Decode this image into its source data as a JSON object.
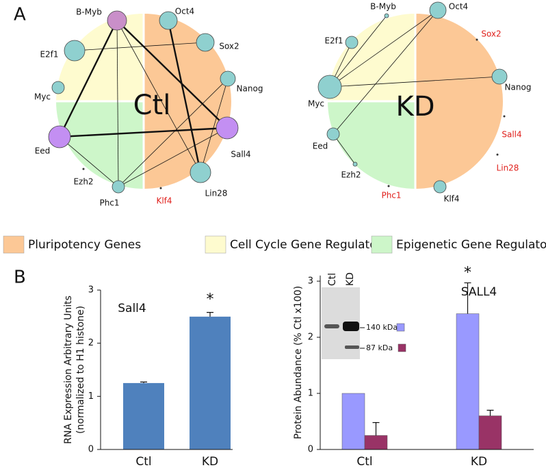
{
  "panel_a": {
    "label": "A",
    "networks": [
      {
        "title": "Ctl",
        "nodes": [
          {
            "name": "B-Myb",
            "color": "#c98fc9"
          },
          {
            "name": "Oct4",
            "color": "#8fd0cf"
          },
          {
            "name": "E2f1",
            "color": "#8fd0cf"
          },
          {
            "name": "Sox2",
            "color": "#8fd0cf"
          },
          {
            "name": "Myc",
            "color": "#8fd0cf"
          },
          {
            "name": "Nanog",
            "color": "#8fd0cf"
          },
          {
            "name": "Eed",
            "color": "#c38ff2"
          },
          {
            "name": "Sall4",
            "color": "#c38ff2"
          },
          {
            "name": "Ezh2",
            "color": "#333333"
          },
          {
            "name": "Lin28",
            "color": "#8fd0cf"
          },
          {
            "name": "Phc1",
            "color": "#8fd0cf"
          },
          {
            "name": "Klf4",
            "color": "#333333",
            "label_color": "#e0201c"
          }
        ],
        "strong_edges": [
          [
            "B-Myb",
            "Eed"
          ],
          [
            "B-Myb",
            "Sall4"
          ],
          [
            "Eed",
            "Sall4"
          ],
          [
            "Oct4",
            "Lin28"
          ]
        ],
        "edges": [
          [
            "B-Myb",
            "Phc1"
          ],
          [
            "B-Myb",
            "Lin28"
          ],
          [
            "E2f1",
            "Sox2"
          ],
          [
            "Nanog",
            "Lin28"
          ],
          [
            "Nanog",
            "Phc1"
          ],
          [
            "Sall4",
            "Phc1"
          ],
          [
            "Eed",
            "Phc1"
          ]
        ]
      },
      {
        "title": "KD",
        "nodes": [
          {
            "name": "B-Myb",
            "color": "#8fd0cf"
          },
          {
            "name": "Oct4",
            "color": "#8fd0cf"
          },
          {
            "name": "E2f1",
            "color": "#8fd0cf"
          },
          {
            "name": "Sox2",
            "color": "#333333",
            "label_color": "#e0201c"
          },
          {
            "name": "Myc",
            "color": "#8fd0cf"
          },
          {
            "name": "Nanog",
            "color": "#8fd0cf"
          },
          {
            "name": "Eed",
            "color": "#8fd0cf"
          },
          {
            "name": "Sall4",
            "color": "#333333",
            "label_color": "#e0201c"
          },
          {
            "name": "Ezh2",
            "color": "#8fd0cf"
          },
          {
            "name": "Lin28",
            "color": "#333333",
            "label_color": "#e0201c"
          },
          {
            "name": "Phc1",
            "color": "#333333",
            "label_color": "#e0201c"
          },
          {
            "name": "Klf4",
            "color": "#8fd0cf"
          }
        ],
        "strong_edges": [],
        "edges": [
          [
            "Myc",
            "B-Myb"
          ],
          [
            "Myc",
            "E2f1"
          ],
          [
            "Myc",
            "Oct4"
          ],
          [
            "Myc",
            "Nanog"
          ],
          [
            "Eed",
            "Oct4"
          ],
          [
            "Eed",
            "Ezh2"
          ]
        ]
      }
    ]
  },
  "legend": [
    {
      "label": "Pluripotency Genes",
      "color": "#fcc896"
    },
    {
      "label": "Cell Cycle Gene Regulators",
      "color": "#fefbcf"
    },
    {
      "label": "Epigenetic Gene Regulators",
      "color": "#cdf6c9"
    }
  ],
  "panel_b": {
    "label": "B"
  },
  "chart_data": [
    {
      "type": "bar",
      "title": "Sall4",
      "y_label": [
        "RNA Expression Arbitrary Units",
        "(normalized to H1 histone)"
      ],
      "categories": [
        "Ctl",
        "KD"
      ],
      "values": [
        1.25,
        2.5
      ],
      "errors": [
        0.02,
        0.08
      ],
      "significance": [
        null,
        "*"
      ],
      "color": "#4f81bd",
      "ylim": [
        0,
        3
      ],
      "yticks": [
        0,
        1,
        2,
        3
      ]
    },
    {
      "type": "grouped_bar",
      "title": "SALL4",
      "y_label": "Protein Abundance (% Ctl x100)",
      "categories": [
        "Ctl",
        "KD"
      ],
      "series": [
        {
          "name": "140 kDa",
          "color": "#9999ff",
          "values": [
            1,
            2.42
          ],
          "errors": [
            null,
            0.55
          ]
        },
        {
          "name": "87 kDa",
          "color": "#993366",
          "values": [
            0.25,
            0.6
          ],
          "errors": [
            0.23,
            0.1
          ]
        }
      ],
      "significance": [
        null,
        "*"
      ],
      "ylim": [
        0,
        3.1
      ],
      "yticks": [
        0,
        1,
        2,
        3
      ]
    }
  ]
}
